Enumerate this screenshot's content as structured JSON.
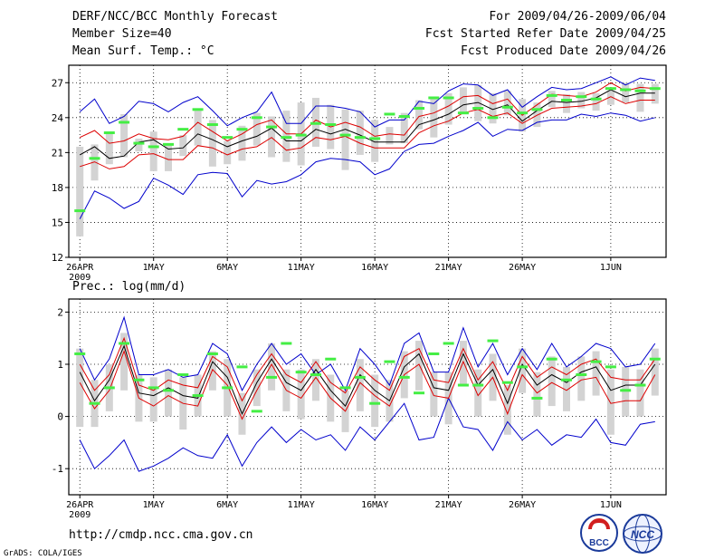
{
  "header": {
    "title": "DERF/NCC/BCC Monthly Forecast",
    "member": "Member Size=40",
    "variable": "Mean Surf. Temp.: °C",
    "period": "For 2009/04/26-2009/06/04",
    "refer": "Fcst Started Refer Date 2009/04/25",
    "produced": "Fcst Produced Date 2009/04/26"
  },
  "footer": {
    "url": "http://cmdp.ncc.cma.gov.cn",
    "grads": "GrADS: COLA/IGES",
    "logo_bcc": "BCC",
    "logo_ncc": "NCC"
  },
  "colors": {
    "spread": "#d3d3d3",
    "obs": "#44ee44",
    "mean": "#000000",
    "band": "#dd0000",
    "envelope": "#0000cc"
  },
  "chart_data": [
    {
      "type": "line",
      "title": "Mean Surf. Temp.: °C",
      "x_ticks": [
        {
          "day": 0,
          "label": "26APR",
          "sub": "2009"
        },
        {
          "day": 5,
          "label": "1MAY"
        },
        {
          "day": 10,
          "label": "6MAY"
        },
        {
          "day": 15,
          "label": "11MAY"
        },
        {
          "day": 20,
          "label": "16MAY"
        },
        {
          "day": 25,
          "label": "21MAY"
        },
        {
          "day": 30,
          "label": "26MAY"
        },
        {
          "day": 36,
          "label": "1JUN"
        }
      ],
      "xlim": [
        -0.75,
        39.75
      ],
      "ylim": [
        12,
        28.5
      ],
      "y_ticks": [
        12,
        15,
        18,
        21,
        24,
        27
      ],
      "days": [
        0,
        1,
        2,
        3,
        4,
        5,
        6,
        7,
        8,
        9,
        10,
        11,
        12,
        13,
        14,
        15,
        16,
        17,
        18,
        19,
        20,
        21,
        22,
        23,
        24,
        25,
        26,
        27,
        28,
        29,
        30,
        31,
        32,
        33,
        34,
        35,
        36,
        37,
        38,
        39
      ],
      "max": [
        24.5,
        25.6,
        23.5,
        24.1,
        25.4,
        25.2,
        24.5,
        25.3,
        25.8,
        24.6,
        23.3,
        24,
        24.5,
        26.2,
        23.5,
        23.5,
        25,
        25,
        24.8,
        24.5,
        23.2,
        23.8,
        23.8,
        25.4,
        25.2,
        26.3,
        26.9,
        26.8,
        25.9,
        26.4,
        24.9,
        25.8,
        26.6,
        26.4,
        26.5,
        27,
        27.5,
        26.8,
        27.4,
        27.2
      ],
      "upper": [
        22.3,
        22.9,
        21.8,
        22,
        22.6,
        22.2,
        22.1,
        22.4,
        23.6,
        22.8,
        22,
        22.6,
        23.4,
        23.8,
        22.6,
        22.6,
        23.8,
        23.2,
        23.6,
        23.2,
        22.4,
        22.6,
        22.5,
        24.1,
        24.4,
        25,
        25.8,
        25.9,
        25.2,
        25.6,
        24.2,
        25.1,
        26,
        25.9,
        25.8,
        26.2,
        27,
        26.3,
        26.6,
        26.5
      ],
      "mean": [
        20.8,
        21.5,
        20.5,
        20.7,
        21.9,
        22.1,
        21.3,
        21.4,
        22.6,
        22.1,
        21.5,
        22,
        22.4,
        23.1,
        22,
        22,
        23,
        22.6,
        23,
        22.5,
        21.9,
        21.9,
        21.9,
        23.4,
        23.8,
        24.3,
        25.1,
        25.3,
        24.7,
        25.1,
        23.7,
        24.6,
        25.4,
        25.3,
        25.4,
        25.7,
        26.4,
        25.8,
        26.1,
        26.1
      ],
      "lower": [
        19.8,
        20.2,
        19.6,
        19.8,
        20.8,
        20.9,
        20.4,
        20.4,
        21.6,
        21.4,
        20.8,
        21.3,
        21.5,
        22.3,
        21.2,
        21.4,
        22.3,
        22.1,
        22.4,
        21.8,
        21.4,
        21.4,
        21.4,
        22.7,
        23.3,
        23.7,
        24.4,
        24.7,
        24.1,
        24.4,
        23.5,
        24.2,
        24.8,
        24.9,
        25,
        25.2,
        25.8,
        25.2,
        25.5,
        25.5
      ],
      "min": [
        15.3,
        17.7,
        17.1,
        16.2,
        16.8,
        18.8,
        18.2,
        17.4,
        19.1,
        19.3,
        19.2,
        17.2,
        18.6,
        18.3,
        18.5,
        19.1,
        20.2,
        20.5,
        20.4,
        20.2,
        19.1,
        19.6,
        21.1,
        21.7,
        21.8,
        22.4,
        22.9,
        23.6,
        22.4,
        23,
        22.9,
        23.6,
        23.8,
        23.8,
        24.3,
        24.1,
        24.4,
        24.2,
        23.7,
        24
      ],
      "spread_lo": [
        13.8,
        18.6,
        20,
        20.6,
        21.1,
        19.4,
        19.4,
        20.7,
        21.6,
        19.8,
        20,
        20.3,
        21.6,
        20.6,
        20.2,
        19.9,
        21.5,
        21.3,
        19.5,
        20.8,
        20.2,
        21.7,
        21.8,
        23,
        22.3,
        23.4,
        24.3,
        23.7,
        23.5,
        24.2,
        22.8,
        23.2,
        24.9,
        24.4,
        24.8,
        24.6,
        25.1,
        25.3,
        24.5,
        25.2
      ],
      "spread_hi": [
        21.5,
        21.7,
        22.6,
        24.3,
        22.2,
        22.8,
        21.6,
        22.5,
        24.6,
        23.8,
        22,
        23.3,
        24.4,
        24.1,
        24.6,
        25.3,
        25.7,
        25.1,
        24.7,
        24.6,
        23.8,
        23.2,
        24.4,
        25.5,
        25.6,
        26.1,
        26.6,
        26.8,
        26.1,
        26.3,
        25.6,
        25.3,
        26.3,
        26,
        26.2,
        26.1,
        26.3,
        27,
        26.9,
        26.9
      ],
      "obs": [
        16,
        20.5,
        22.7,
        23.6,
        21.8,
        21.5,
        21.7,
        23,
        24.7,
        23.4,
        22.3,
        23,
        24,
        23.2,
        22.3,
        22.5,
        23.5,
        23.4,
        22.5,
        22.3,
        22.2,
        24.3,
        24.1,
        24.8,
        25.7,
        25.7,
        24.4,
        24.8,
        24,
        24.9,
        24.4,
        24.7,
        25.9,
        25.5,
        25.8,
        25.6,
        26.5,
        26.4,
        26.3,
        26.5
      ]
    },
    {
      "type": "line",
      "title": "Prec.: log(mm/d)",
      "x_ticks": [
        {
          "day": 0,
          "label": "26APR",
          "sub": "2009"
        },
        {
          "day": 5,
          "label": "1MAY"
        },
        {
          "day": 10,
          "label": "6MAY"
        },
        {
          "day": 15,
          "label": "11MAY"
        },
        {
          "day": 20,
          "label": "16MAY"
        },
        {
          "day": 25,
          "label": "21MAY"
        },
        {
          "day": 30,
          "label": "26MAY"
        },
        {
          "day": 36,
          "label": "1JUN"
        }
      ],
      "xlim": [
        -0.75,
        39.75
      ],
      "ylim": [
        -1.5,
        2.25
      ],
      "y_ticks": [
        -1,
        0,
        1,
        2
      ],
      "days": [
        0,
        1,
        2,
        3,
        4,
        5,
        6,
        7,
        8,
        9,
        10,
        11,
        12,
        13,
        14,
        15,
        16,
        17,
        18,
        19,
        20,
        21,
        22,
        23,
        24,
        25,
        26,
        27,
        28,
        29,
        30,
        31,
        32,
        33,
        34,
        35,
        36,
        37,
        38,
        39
      ],
      "max": [
        1.3,
        0.7,
        1.1,
        1.9,
        0.8,
        0.8,
        0.9,
        0.75,
        0.8,
        1.4,
        1.2,
        0.5,
        1.0,
        1.4,
        1.0,
        1.2,
        0.8,
        1.0,
        0.5,
        1.3,
        1.0,
        0.6,
        1.4,
        1.6,
        0.85,
        0.85,
        1.7,
        0.95,
        1.4,
        0.8,
        1.3,
        0.9,
        1.4,
        0.95,
        1.15,
        1.4,
        1.3,
        0.95,
        1.0,
        1.4
      ],
      "upper": [
        1.0,
        0.5,
        0.8,
        1.5,
        0.6,
        0.5,
        0.7,
        0.6,
        0.55,
        1.15,
        0.95,
        0.3,
        0.8,
        1.2,
        0.8,
        0.65,
        1.05,
        0.65,
        0.45,
        0.95,
        0.7,
        0.5,
        1.15,
        1.3,
        0.7,
        0.65,
        1.3,
        0.7,
        1.05,
        0.5,
        1.15,
        0.75,
        0.95,
        0.8,
        1.0,
        1.1,
        0.75,
        0.7,
        0.7,
        1.1
      ],
      "mean": [
        0.85,
        0.3,
        0.7,
        1.35,
        0.45,
        0.4,
        0.55,
        0.4,
        0.35,
        1.05,
        0.75,
        0.05,
        0.65,
        1.1,
        0.65,
        0.5,
        0.9,
        0.5,
        0.2,
        0.8,
        0.5,
        0.3,
        0.95,
        1.2,
        0.55,
        0.5,
        1.2,
        0.6,
        0.9,
        0.25,
        1.0,
        0.6,
        0.8,
        0.65,
        0.85,
        0.95,
        0.5,
        0.6,
        0.6,
        1.0
      ],
      "lower": [
        0.65,
        0.15,
        0.5,
        1.25,
        0.35,
        0.2,
        0.4,
        0.25,
        0.2,
        0.9,
        0.6,
        -0.05,
        0.5,
        1.0,
        0.5,
        0.35,
        0.75,
        0.35,
        0.1,
        0.65,
        0.4,
        0.2,
        0.8,
        1.0,
        0.4,
        0.35,
        1.05,
        0.4,
        0.75,
        0.05,
        0.8,
        0.45,
        0.65,
        0.5,
        0.7,
        0.75,
        0.25,
        0.3,
        0.3,
        0.8
      ],
      "min": [
        -0.45,
        -1.0,
        -0.75,
        -0.45,
        -1.05,
        -0.95,
        -0.8,
        -0.6,
        -0.75,
        -0.8,
        -0.35,
        -0.95,
        -0.5,
        -0.2,
        -0.5,
        -0.25,
        -0.45,
        -0.35,
        -0.65,
        -0.2,
        -0.45,
        -0.1,
        0.25,
        -0.45,
        -0.4,
        0.35,
        -0.2,
        -0.25,
        -0.65,
        -0.1,
        -0.45,
        -0.25,
        -0.55,
        -0.35,
        -0.4,
        -0.05,
        -0.5,
        -0.55,
        -0.15,
        -0.1
      ],
      "spread_lo": [
        -0.2,
        -0.2,
        0.1,
        0.5,
        -0.1,
        -0.1,
        0.0,
        -0.25,
        0.0,
        0.5,
        0.0,
        -0.35,
        0.2,
        0.5,
        0.1,
        -0.05,
        0.3,
        -0.1,
        -0.3,
        0.1,
        -0.2,
        -0.1,
        0.35,
        0.5,
        0.0,
        -0.15,
        0.6,
        0.0,
        0.3,
        -0.35,
        0.45,
        0.0,
        0.2,
        0.1,
        0.3,
        0.4,
        -0.35,
        0.0,
        0.0,
        0.4
      ],
      "spread_hi": [
        1.3,
        0.7,
        1.0,
        1.6,
        0.8,
        0.75,
        0.9,
        0.75,
        0.8,
        1.25,
        1.1,
        0.45,
        0.9,
        1.4,
        0.9,
        0.9,
        1.1,
        0.8,
        0.5,
        1.1,
        0.8,
        0.7,
        1.25,
        1.45,
        0.85,
        0.85,
        1.45,
        0.9,
        1.2,
        0.6,
        1.3,
        0.85,
        1.15,
        0.95,
        1.15,
        1.25,
        0.9,
        0.95,
        0.9,
        1.3
      ],
      "obs": [
        1.2,
        0.25,
        0.55,
        1.4,
        0.7,
        0.55,
        0.5,
        0.8,
        0.4,
        1.2,
        0.55,
        0.95,
        0.1,
        0.75,
        1.4,
        0.85,
        0.8,
        1.1,
        0.55,
        0.75,
        0.25,
        1.05,
        0.75,
        0.45,
        1.2,
        1.4,
        0.6,
        0.6,
        1.45,
        0.65,
        0.95,
        0.35,
        1.1,
        0.7,
        0.8,
        1.05,
        0.95,
        0.5,
        0.6,
        1.1
      ]
    }
  ]
}
